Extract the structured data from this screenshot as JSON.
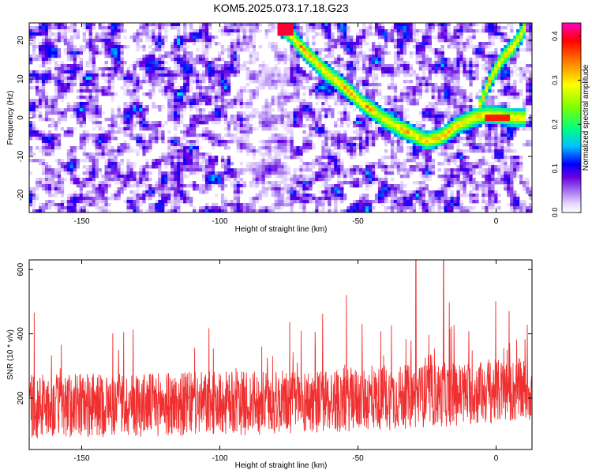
{
  "title": "KOM5.2025.073.17.18.G23",
  "chart_data": [
    {
      "type": "heatmap",
      "xlabel": "Height of straight line (km)",
      "ylabel": "Frequency (Hz)",
      "xlim": [
        -169,
        13
      ],
      "ylim": [
        -24.5,
        24.5
      ],
      "x_ticks": [
        -150,
        -100,
        -50,
        0
      ],
      "y_ticks": [
        -20,
        -10,
        0,
        10,
        20
      ],
      "colorbar": {
        "label": "Normalized spectral amplitude",
        "range": [
          0.0,
          0.43
        ],
        "ticks": [
          0.0,
          0.1,
          0.2,
          0.3,
          0.4
        ],
        "stops": [
          {
            "v": 0.0,
            "color": "#ffffff"
          },
          {
            "v": 0.02,
            "color": "#e6d6ff"
          },
          {
            "v": 0.05,
            "color": "#a070f0"
          },
          {
            "v": 0.08,
            "color": "#6a00e0"
          },
          {
            "v": 0.11,
            "color": "#0000ff"
          },
          {
            "v": 0.15,
            "color": "#00c0ff"
          },
          {
            "v": 0.19,
            "color": "#00ff80"
          },
          {
            "v": 0.24,
            "color": "#80ff00"
          },
          {
            "v": 0.29,
            "color": "#ffff00"
          },
          {
            "v": 0.34,
            "color": "#ff8000"
          },
          {
            "v": 0.39,
            "color": "#ff0000"
          },
          {
            "v": 0.43,
            "color": "#ff00c0"
          }
        ]
      },
      "ridge": [
        {
          "x": -79,
          "y": 24
        },
        {
          "x": -75,
          "y": 22
        },
        {
          "x": -69,
          "y": 17
        },
        {
          "x": -62,
          "y": 12
        },
        {
          "x": -55,
          "y": 8
        },
        {
          "x": -49,
          "y": 4
        },
        {
          "x": -43,
          "y": 1
        },
        {
          "x": -37,
          "y": -2
        },
        {
          "x": -31,
          "y": -4
        },
        {
          "x": -25,
          "y": -6
        },
        {
          "x": -20,
          "y": -5
        },
        {
          "x": -14,
          "y": -2
        },
        {
          "x": -8,
          "y": 0
        },
        {
          "x": -3,
          "y": 1
        },
        {
          "x": 2,
          "y": 0.5
        },
        {
          "x": 7,
          "y": 0
        },
        {
          "x": 11,
          "y": 0
        }
      ],
      "ridge_branch": [
        {
          "x": -6,
          "y": 3
        },
        {
          "x": -2,
          "y": 10
        },
        {
          "x": 2,
          "y": 15
        },
        {
          "x": 7,
          "y": 19
        },
        {
          "x": 11,
          "y": 24
        }
      ]
    },
    {
      "type": "line",
      "xlabel": "Height of straight line (km)",
      "ylabel": "SNR (10 * v/v)",
      "xlim": [
        -169,
        13
      ],
      "ylim": [
        40,
        630
      ],
      "x_ticks": [
        -150,
        -100,
        -50,
        0
      ],
      "y_ticks": [
        200,
        400,
        600
      ],
      "series": [
        {
          "color": "#f03030",
          "base_trend": [
            [
              -169,
              175
            ],
            [
              -80,
              185
            ],
            [
              -40,
              200
            ],
            [
              0,
              220
            ],
            [
              13,
              225
            ]
          ]
        }
      ]
    }
  ]
}
